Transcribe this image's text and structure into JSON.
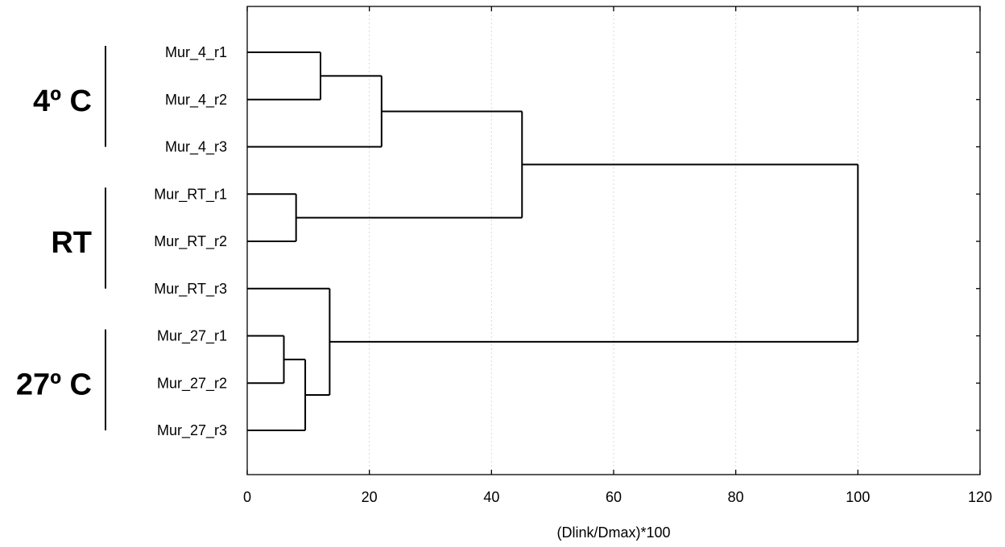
{
  "chart_data": {
    "type": "dendrogram",
    "orientation": "horizontal",
    "xlabel": "(Dlink/Dmax)*100",
    "xlim": [
      0,
      120
    ],
    "xticks": [
      0,
      20,
      40,
      60,
      80,
      100,
      120
    ],
    "grid": "vertical dotted",
    "leaves": [
      "Mur_4_r1",
      "Mur_4_r2",
      "Mur_4_r3",
      "Mur_RT_r1",
      "Mur_RT_r2",
      "Mur_RT_r3",
      "Mur_27_r1",
      "Mur_27_r2",
      "Mur_27_r3"
    ],
    "merges": [
      {
        "a": "L0",
        "b": "L1",
        "height": 12
      },
      {
        "a": "M0",
        "b": "L2",
        "height": 22
      },
      {
        "a": "L3",
        "b": "L4",
        "height": 8
      },
      {
        "a": "M1",
        "b": "M2",
        "height": 45
      },
      {
        "a": "L6",
        "b": "L7",
        "height": 6
      },
      {
        "a": "M4",
        "b": "L8",
        "height": 9.5
      },
      {
        "a": "L5",
        "b": "M5",
        "height": 13.5
      },
      {
        "a": "M3",
        "b": "M6",
        "height": 100
      }
    ],
    "groups": [
      {
        "label": "4º C",
        "from": 0,
        "to": 2
      },
      {
        "label": "RT",
        "from": 3,
        "to": 5
      },
      {
        "label": "27º C",
        "from": 6,
        "to": 8
      }
    ]
  }
}
